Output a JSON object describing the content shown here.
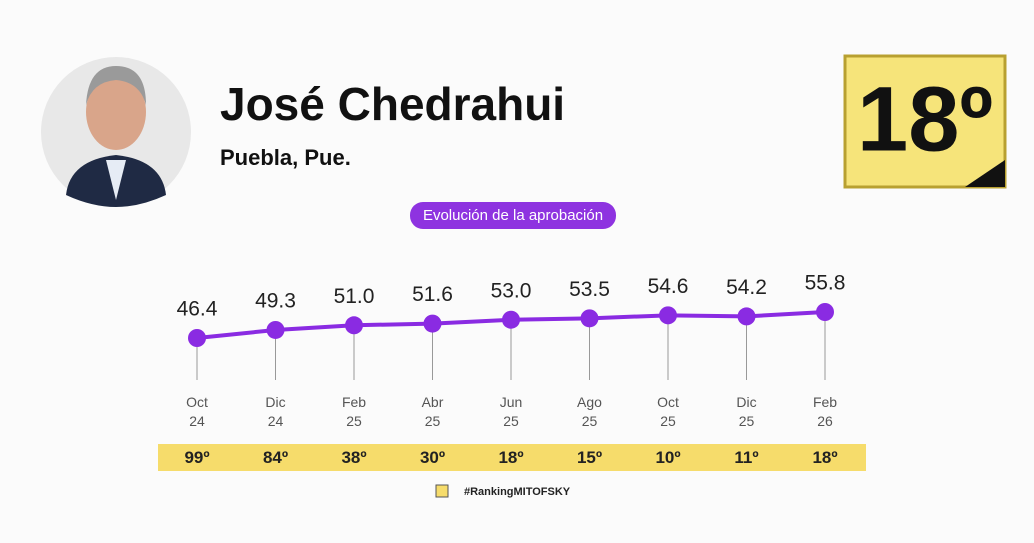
{
  "header": {
    "name": "José Chedrahui",
    "location": "Puebla, Pue.",
    "current_rank": "18º"
  },
  "chart_data": {
    "type": "line",
    "title": "Evolución de la aprobación",
    "categories": [
      "Oct\n24",
      "Dic\n24",
      "Feb\n25",
      "Abr\n25",
      "Jun\n25",
      "Ago\n25",
      "Oct\n25",
      "Dic\n25",
      "Feb\n26"
    ],
    "values": [
      46.4,
      49.3,
      51,
      51.6,
      53,
      53.5,
      54.6,
      54.2,
      55.8
    ],
    "value_labels": [
      "46.4",
      "49.3",
      "51.0",
      "51.6",
      "53.0",
      "53.5",
      "54.6",
      "54.2",
      "55.8"
    ],
    "color": "#8a2be2",
    "rankings": {
      "name": "#RankingMITOFSKY",
      "color": "#f6dc6b",
      "labels": [
        "99º",
        "84º",
        "38º",
        "30º",
        "18º",
        "15º",
        "10º",
        "11º",
        "18º"
      ]
    }
  }
}
